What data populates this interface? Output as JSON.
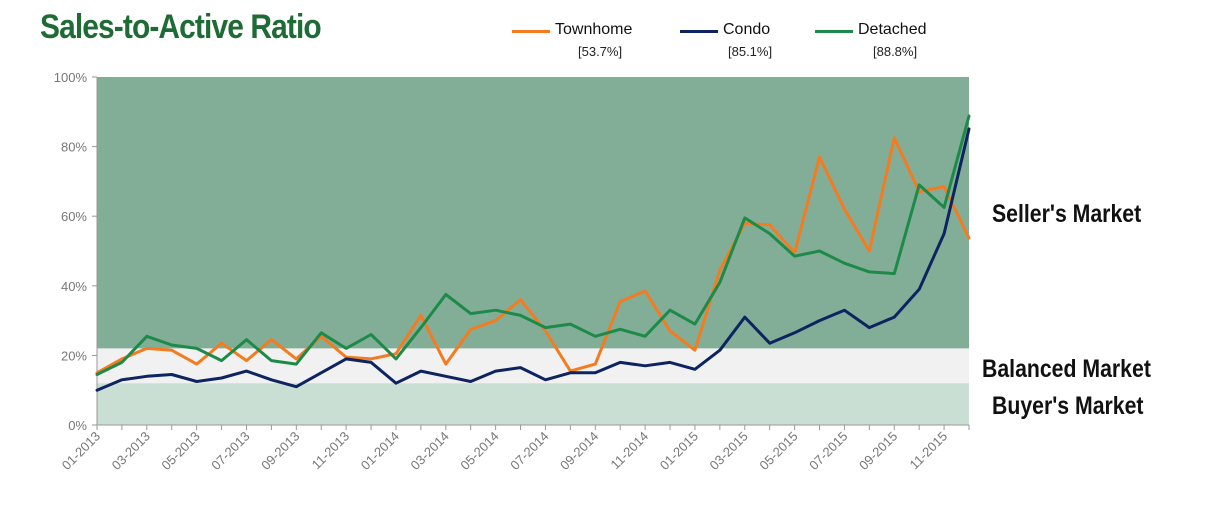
{
  "chart_data": {
    "type": "line",
    "title": "Sales-to-Active Ratio",
    "x": [
      "01-2013",
      "02-2013",
      "03-2013",
      "04-2013",
      "05-2013",
      "06-2013",
      "07-2013",
      "08-2013",
      "09-2013",
      "10-2013",
      "11-2013",
      "12-2013",
      "01-2014",
      "02-2014",
      "03-2014",
      "04-2014",
      "05-2014",
      "06-2014",
      "07-2014",
      "08-2014",
      "09-2014",
      "10-2014",
      "11-2014",
      "12-2014",
      "01-2015",
      "02-2015",
      "03-2015",
      "04-2015",
      "05-2015",
      "06-2015",
      "07-2015",
      "08-2015",
      "09-2015",
      "10-2015",
      "11-2015",
      "12-2015"
    ],
    "x_tick_labels": [
      "01-2013",
      "03-2013",
      "05-2013",
      "07-2013",
      "09-2013",
      "11-2013",
      "01-2014",
      "03-2014",
      "05-2014",
      "07-2014",
      "09-2014",
      "11-2014",
      "01-2015",
      "03-2015",
      "05-2015",
      "07-2015",
      "09-2015",
      "11-2015"
    ],
    "y_tick_labels": [
      "0%",
      "20%",
      "40%",
      "60%",
      "80%",
      "100%"
    ],
    "ylim": [
      0,
      100
    ],
    "series": [
      {
        "name": "Townhome",
        "legend_value": "[53.7%]",
        "color": "#f47b20",
        "values": [
          15,
          19,
          22,
          21.5,
          17.5,
          23.5,
          18.5,
          24.5,
          19,
          25.5,
          19.5,
          19,
          20.5,
          31.5,
          17.5,
          27.5,
          30,
          36,
          27,
          15.5,
          17.5,
          35.5,
          38.5,
          27,
          21.5,
          44.5,
          58,
          57.5,
          49.5,
          77,
          62,
          50,
          82.5,
          67,
          68.5,
          53.7
        ]
      },
      {
        "name": "Condo",
        "legend_value": "[85.1%]",
        "color": "#0d2461",
        "values": [
          10,
          13,
          14,
          14.5,
          12.5,
          13.5,
          15.5,
          13,
          11,
          15,
          19,
          18,
          12,
          15.5,
          14,
          12.5,
          15.5,
          16.5,
          13,
          15,
          15,
          18,
          17,
          18,
          16,
          21.5,
          31,
          23.5,
          26.5,
          30,
          33,
          28,
          31,
          39,
          55,
          85.1
        ]
      },
      {
        "name": "Detached",
        "legend_value": "[88.8%]",
        "color": "#1e8a4a",
        "values": [
          14.5,
          18,
          25.5,
          23,
          22,
          18.5,
          24.5,
          18.5,
          17.5,
          26.5,
          22,
          26,
          19,
          28,
          37.5,
          32,
          33,
          31.5,
          28,
          29,
          25.5,
          27.5,
          25.5,
          33,
          29,
          41,
          59.5,
          55,
          48.5,
          50,
          46.5,
          44,
          43.5,
          69,
          62.5,
          88.8
        ]
      }
    ],
    "bands": [
      {
        "label": "Seller's Market",
        "from": 22,
        "to": 100,
        "color": "#82ae98"
      },
      {
        "label": "Balanced Market",
        "from": 12,
        "to": 22,
        "color": "#f1f1f1"
      },
      {
        "label": "Buyer's Market",
        "from": 0,
        "to": 12,
        "color": "#c9dfd3"
      }
    ],
    "grid": false,
    "legend_position": "top"
  }
}
